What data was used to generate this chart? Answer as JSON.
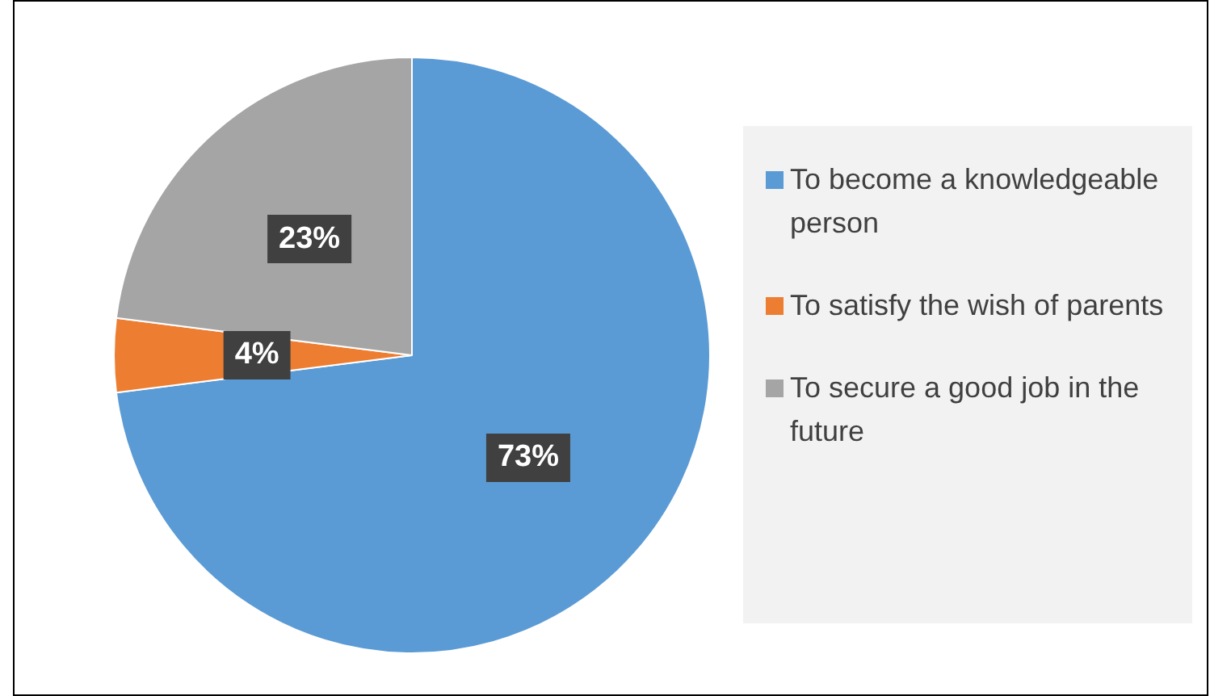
{
  "chart_data": {
    "type": "pie",
    "categories": [
      "To become a knowledgeable person",
      "To satisfy the wish of parents",
      "To secure a good job in the future"
    ],
    "values": [
      73,
      4,
      23
    ],
    "colors": [
      "#5b9bd5",
      "#ed7d31",
      "#a5a5a5"
    ],
    "value_labels": [
      "73%",
      "4%",
      "23%"
    ],
    "legend": "right"
  }
}
